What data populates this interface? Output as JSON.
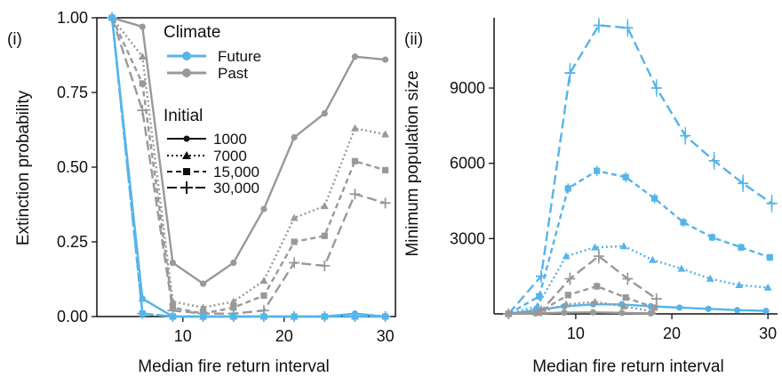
{
  "colors": {
    "future": "#56B4E9",
    "past": "#999999",
    "axis": "#111111"
  },
  "legend": {
    "climate_title": "Climate",
    "climate_items": [
      {
        "label": "Future",
        "color": "#56B4E9"
      },
      {
        "label": "Past",
        "color": "#999999"
      }
    ],
    "initial_title": "Initial",
    "initial_items": [
      {
        "label": "1000",
        "dash": "solid",
        "marker": "circle"
      },
      {
        "label": "7000",
        "dash": "dotted",
        "marker": "triangle"
      },
      {
        "label": "15,000",
        "dash": "dashed",
        "marker": "square"
      },
      {
        "label": "30,000",
        "dash": "longdash",
        "marker": "plus"
      }
    ]
  },
  "chart_data": [
    {
      "panel_label": "(i)",
      "type": "line",
      "xlabel": "Median fire return interval",
      "ylabel": "Extinction probability",
      "xlim": [
        1.5,
        31
      ],
      "ylim": [
        0,
        1
      ],
      "xticks": [
        10,
        20,
        30
      ],
      "yticks": [
        {
          "v": 0,
          "label": "0.00"
        },
        {
          "v": 0.25,
          "label": "0.25"
        },
        {
          "v": 0.5,
          "label": "0.50"
        },
        {
          "v": 0.75,
          "label": "0.75"
        },
        {
          "v": 1,
          "label": "1.00"
        }
      ],
      "x": [
        3,
        6,
        9,
        12,
        15,
        18,
        21,
        24,
        27,
        30
      ],
      "series": [
        {
          "climate": "Past",
          "initial": "1000",
          "values": [
            1.0,
            0.97,
            0.18,
            0.11,
            0.18,
            0.36,
            0.6,
            0.68,
            0.87,
            0.86
          ]
        },
        {
          "climate": "Past",
          "initial": "7000",
          "values": [
            1.0,
            0.87,
            0.05,
            0.03,
            0.05,
            0.12,
            0.33,
            0.37,
            0.63,
            0.61
          ]
        },
        {
          "climate": "Past",
          "initial": "15,000",
          "values": [
            1.0,
            0.78,
            0.03,
            0.01,
            0.03,
            0.07,
            0.25,
            0.27,
            0.52,
            0.49
          ]
        },
        {
          "climate": "Past",
          "initial": "30,000",
          "values": [
            1.0,
            0.69,
            0.02,
            0.01,
            0.01,
            0.02,
            0.18,
            0.17,
            0.41,
            0.38
          ]
        },
        {
          "climate": "Future",
          "initial": "1000",
          "values": [
            1.0,
            0.06,
            0.0,
            0.0,
            0.0,
            0.0,
            0.0,
            0.0,
            0.01,
            0.0
          ]
        },
        {
          "climate": "Future",
          "initial": "7000",
          "values": [
            1.0,
            0.06,
            0.0,
            0.0,
            0.0,
            0.0,
            0.0,
            0.0,
            0.0,
            0.0
          ]
        },
        {
          "climate": "Future",
          "initial": "15,000",
          "values": [
            1.0,
            0.01,
            0.0,
            0.0,
            0.0,
            0.0,
            0.0,
            0.0,
            0.0,
            0.0
          ]
        },
        {
          "climate": "Future",
          "initial": "30,000",
          "values": [
            1.0,
            0.01,
            0.0,
            0.0,
            0.0,
            0.0,
            0.0,
            0.0,
            0.0,
            0.0
          ]
        }
      ]
    },
    {
      "panel_label": "(ii)",
      "type": "line",
      "xlabel": "Median fire return interval",
      "ylabel": "Minimum population size",
      "xlim": [
        1.5,
        31
      ],
      "ylim": [
        0,
        11800
      ],
      "xticks": [
        10,
        20,
        30
      ],
      "yticks": [
        {
          "v": 3000,
          "label": "3000"
        },
        {
          "v": 6000,
          "label": "6000"
        },
        {
          "v": 9000,
          "label": "9000"
        }
      ],
      "error_bars": true,
      "series": [
        {
          "climate": "Future",
          "initial": "30,000",
          "x": [
            3,
            6.4,
            9.4,
            12.4,
            15.4,
            18.4,
            21.4,
            24.4,
            27.4,
            30.4
          ],
          "values": [
            0,
            1500,
            9600,
            11500,
            11400,
            9000,
            7100,
            6100,
            5200,
            4400
          ],
          "err": [
            0,
            250,
            400,
            300,
            350,
            350,
            350,
            350,
            350,
            350
          ]
        },
        {
          "climate": "Future",
          "initial": "15,000",
          "x": [
            3,
            6.2,
            9.2,
            12.2,
            15.2,
            18.2,
            21.2,
            24.2,
            27.2,
            30.2
          ],
          "values": [
            0,
            700,
            5000,
            5700,
            5450,
            4600,
            3650,
            3050,
            2650,
            2250
          ],
          "err": [
            0,
            150,
            200,
            200,
            200,
            200,
            180,
            160,
            150,
            150
          ]
        },
        {
          "climate": "Future",
          "initial": "7000",
          "x": [
            3,
            6,
            9,
            12,
            15,
            18,
            21,
            24,
            27,
            30
          ],
          "values": [
            0,
            300,
            2300,
            2650,
            2700,
            2150,
            1800,
            1400,
            1150,
            1050
          ],
          "err": [
            0,
            80,
            120,
            120,
            120,
            110,
            100,
            90,
            80,
            80
          ]
        },
        {
          "climate": "Future",
          "initial": "1000",
          "x": [
            3,
            5.8,
            8.8,
            11.8,
            14.8,
            17.8,
            20.8,
            23.8,
            26.8,
            29.8
          ],
          "values": [
            0,
            150,
            300,
            380,
            380,
            300,
            250,
            200,
            150,
            120
          ],
          "err": [
            0,
            40,
            40,
            40,
            40,
            40,
            40,
            30,
            30,
            30
          ]
        },
        {
          "climate": "Past",
          "initial": "30,000",
          "x": [
            3,
            6.4,
            9.4,
            12.4,
            15.4,
            18.4
          ],
          "values": [
            0,
            120,
            1400,
            2300,
            1400,
            600
          ],
          "err": [
            0,
            50,
            250,
            300,
            250,
            150
          ]
        },
        {
          "climate": "Past",
          "initial": "15,000",
          "x": [
            3,
            6.2,
            9.2,
            12.2,
            15.2,
            18.2
          ],
          "values": [
            0,
            80,
            750,
            1100,
            650,
            250
          ],
          "err": [
            0,
            30,
            120,
            150,
            120,
            80
          ]
        },
        {
          "climate": "Past",
          "initial": "7000",
          "x": [
            3,
            6,
            9,
            12,
            15,
            18
          ],
          "values": [
            0,
            40,
            380,
            480,
            300,
            100
          ],
          "err": [
            0,
            20,
            60,
            70,
            60,
            40
          ]
        },
        {
          "climate": "Past",
          "initial": "1000",
          "x": [
            3,
            5.8,
            8.8,
            11.8,
            14.8,
            17.8
          ],
          "values": [
            0,
            20,
            50,
            60,
            40,
            20
          ],
          "err": [
            0,
            10,
            20,
            20,
            15,
            10
          ]
        }
      ]
    }
  ]
}
